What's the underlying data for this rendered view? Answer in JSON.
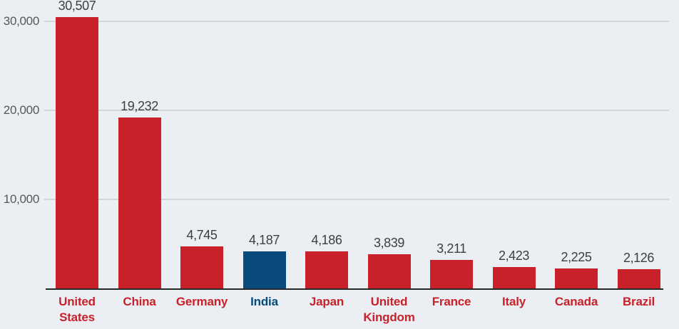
{
  "chart_data": {
    "type": "bar",
    "title": "",
    "xlabel": "",
    "ylabel": "",
    "legend": "none",
    "grid": "horizontal",
    "categories": [
      "United States",
      "China",
      "Germany",
      "India",
      "Japan",
      "United Kingdom",
      "France",
      "Italy",
      "Canada",
      "Brazil"
    ],
    "values": [
      30507,
      19232,
      4745,
      4187,
      4186,
      3839,
      3211,
      2423,
      2225,
      2126
    ],
    "value_labels": [
      "30,507",
      "19,232",
      "4,745",
      "4,187",
      "4,186",
      "3,839",
      "3,211",
      "2,423",
      "2,225",
      "2,126"
    ],
    "highlight_index": 3,
    "y_axis": {
      "range": [
        0,
        32400
      ],
      "ticks": [
        {
          "value": 10000,
          "label": "10,000"
        },
        {
          "value": 20000,
          "label": "20,000"
        },
        {
          "value": 30000,
          "label": "30,000"
        }
      ]
    },
    "colors": {
      "bar": "#c8212a",
      "highlight_bar": "#084a7c",
      "category_label": "#c8212a",
      "highlight_category_label": "#084a7c",
      "value_label": "#3b3f43",
      "tick_label": "#54585c",
      "gridline": "#d3d7db",
      "axis_line": "#282828",
      "background": "#ebeff3"
    }
  }
}
